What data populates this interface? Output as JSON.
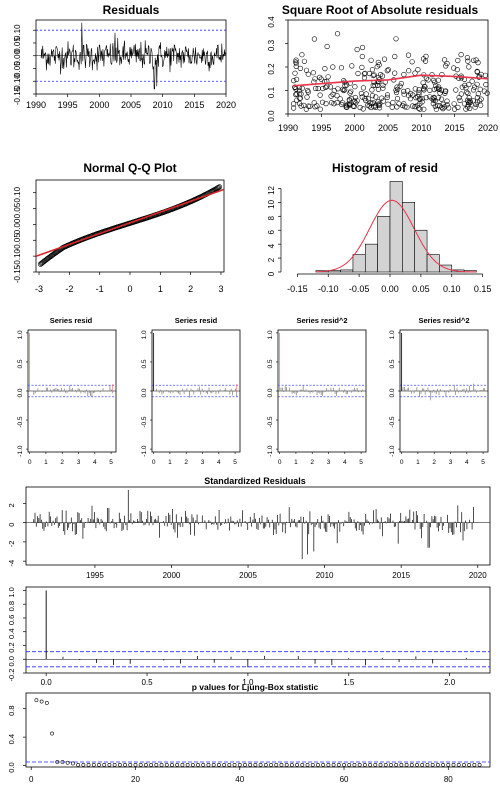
{
  "colors": {
    "series": "#000000",
    "conf_blue": "#2b2bff",
    "fit_red": "#e8334b",
    "qq_line": "#d62728",
    "hist_fill": "#d3d3d3",
    "acf_gray": "#7a7a7a",
    "pink": "#ff6b8b"
  },
  "chart_data": [
    {
      "id": "residuals",
      "type": "line",
      "title": "Residuals",
      "x_ticks": [
        "1990",
        "1995",
        "2000",
        "2005",
        "2010",
        "2015",
        "2020"
      ],
      "y_ticks": [
        "0.10",
        "0.05",
        "0.00",
        "-0.05",
        "-0.10",
        "-0.15"
      ],
      "xlim": [
        1990,
        2020
      ],
      "ylim": [
        -0.15,
        0.14
      ],
      "reference_lines": [
        0.1,
        -0.1
      ],
      "spikes": [
        {
          "x": 1997.2,
          "y": 0.13
        },
        {
          "x": 2008.7,
          "y": -0.13
        },
        {
          "x": 2009.1,
          "y": -0.12
        },
        {
          "x": 2002.5,
          "y": 0.09
        }
      ]
    },
    {
      "id": "sqrt-abs-resid",
      "type": "scatter",
      "title": "Square Root of Absolute residuals",
      "x_ticks": [
        "1990",
        "1995",
        "2000",
        "2005",
        "2010",
        "2015",
        "2020"
      ],
      "y_ticks": [
        "0.4",
        "0.3",
        "0.2",
        "0.1",
        "0.0"
      ],
      "xlim": [
        1990,
        2020
      ],
      "ylim": [
        0,
        0.4
      ],
      "smooth_line": [
        [
          1990.8,
          0.12
        ],
        [
          2000,
          0.14
        ],
        [
          2005,
          0.145
        ],
        [
          2010,
          0.165
        ],
        [
          2015,
          0.16
        ],
        [
          2020,
          0.15
        ]
      ]
    },
    {
      "id": "qq-plot",
      "type": "scatter",
      "title": "Normal Q-Q Plot",
      "x_ticks": [
        "-3",
        "-2",
        "-1",
        "0",
        "1",
        "2",
        "3"
      ],
      "y_ticks": [
        "0.10",
        "0.05",
        "0.00",
        "-0.05",
        "-0.10",
        "-0.15"
      ],
      "xlim": [
        -3.1,
        3.1
      ],
      "ylim": [
        -0.15,
        0.14
      ],
      "reference_line": {
        "intercept": 0.005,
        "slope": 0.034
      }
    },
    {
      "id": "histogram",
      "type": "bar",
      "title": "Histogram of resid",
      "x_ticks": [
        "-0.15",
        "-0.10",
        "-0.05",
        "0.00",
        "0.05",
        "0.10",
        "0.15"
      ],
      "y_ticks": [
        "12",
        "10",
        "8",
        "6",
        "4",
        "2",
        "0"
      ],
      "bin_edges": [
        -0.12,
        -0.1,
        -0.08,
        -0.06,
        -0.04,
        -0.02,
        0.0,
        0.02,
        0.04,
        0.06,
        0.08,
        0.1,
        0.12,
        0.14
      ],
      "counts": [
        0.2,
        0.2,
        0.3,
        2.5,
        4.0,
        8.0,
        13.0,
        10.0,
        6.0,
        2.5,
        1.0,
        0.3,
        0.2
      ],
      "density_curve": {
        "mean": 0.003,
        "peak": 10.3,
        "sd": 0.036
      },
      "xlim": [
        -0.17,
        0.17
      ],
      "ylim": [
        0,
        13.5
      ]
    },
    {
      "id": "acf-resid",
      "type": "bar",
      "title": "Series  resid",
      "x_ticks": [
        "0",
        "1",
        "2",
        "3",
        "4",
        "5"
      ],
      "y_ticks": [
        "1.0",
        "0.5",
        "0.0",
        "-0.5",
        "-1.0"
      ],
      "ci": 0.1,
      "lag0_color": "pink",
      "ylim": [
        -1.05,
        1.05
      ]
    },
    {
      "id": "pacf-resid",
      "type": "bar",
      "title": "Series  resid",
      "x_ticks": [
        "0",
        "1",
        "2",
        "3",
        "4",
        "5"
      ],
      "y_ticks": [
        "1.0",
        "0.5",
        "0.0",
        "-0.5",
        "-1.0"
      ],
      "ci": 0.1,
      "lag0_color": "black",
      "ylim": [
        -1.05,
        1.05
      ]
    },
    {
      "id": "acf-resid2",
      "type": "bar",
      "title": "Series  resid^2",
      "x_ticks": [
        "0",
        "1",
        "2",
        "3",
        "4",
        "5"
      ],
      "y_ticks": [
        "1.0",
        "0.5",
        "0.0",
        "-0.5",
        "-1.0"
      ],
      "ci": 0.1,
      "lag0_color": "pink",
      "ylim": [
        -1.05,
        1.05
      ]
    },
    {
      "id": "pacf-resid2",
      "type": "bar",
      "title": "Series  resid^2",
      "x_ticks": [
        "0",
        "1",
        "2",
        "3",
        "4",
        "5"
      ],
      "y_ticks": [
        "1.0",
        "0.5",
        "0.0",
        "-0.5",
        "-1.0"
      ],
      "ci": 0.1,
      "lag0_color": "black",
      "ylim": [
        -1.05,
        1.05
      ]
    },
    {
      "id": "std-resid",
      "type": "bar",
      "title": "Standardized Residuals",
      "x_ticks": [
        "1995",
        "2000",
        "2005",
        "2010",
        "2015",
        "2020"
      ],
      "y_ticks": [
        "2",
        "0",
        "-2",
        "-4"
      ],
      "xlim": [
        1990.5,
        2020.8
      ],
      "ylim": [
        -4.4,
        3.7
      ],
      "spikes": [
        {
          "x": 1997.2,
          "y": 3.4
        },
        {
          "x": 2008.5,
          "y": -3.8
        },
        {
          "x": 2008.9,
          "y": -3.3
        },
        {
          "x": 2009.3,
          "y": -3.0
        },
        {
          "x": 2016.8,
          "y": -2.6
        }
      ]
    },
    {
      "id": "acf-std-resid",
      "type": "bar",
      "title": "",
      "x_ticks": [
        "0.0",
        "0.5",
        "1.0",
        "1.5",
        "2.0"
      ],
      "y_ticks": [
        "1.0",
        "0.8",
        "0.6",
        "0.4",
        "0.2",
        "0.0",
        "-0.2"
      ],
      "xlim": [
        -0.1,
        2.2
      ],
      "ylim": [
        -0.2,
        1.05
      ],
      "ci": 0.11,
      "lag_spacing": 0.0833
    },
    {
      "id": "ljung-box",
      "type": "scatter",
      "title": "p values for Ljung-Box statistic",
      "x_ticks": [
        "0",
        "20",
        "40",
        "60",
        "80"
      ],
      "y_ticks": [
        "0.8",
        "0.4",
        "0.0"
      ],
      "xlim": [
        -1,
        88
      ],
      "ylim": [
        -0.02,
        1.02
      ],
      "threshold": 0.05,
      "points": [
        {
          "lag": 1,
          "p": 0.92
        },
        {
          "lag": 2,
          "p": 0.9
        },
        {
          "lag": 3,
          "p": 0.88
        },
        {
          "lag": 4,
          "p": 0.45
        },
        {
          "lag": 5,
          "p": 0.05
        },
        {
          "lag": 6,
          "p": 0.05
        },
        {
          "lag": 7,
          "p": 0.04
        },
        {
          "lag": 8,
          "p": 0.03
        }
      ],
      "tail_p": 0.01,
      "tail_lag_end": 86
    }
  ]
}
